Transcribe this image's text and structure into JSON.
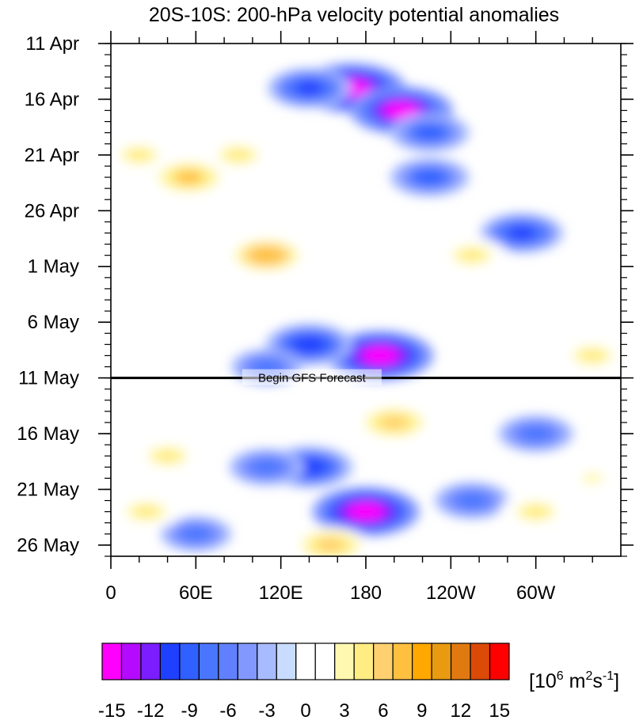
{
  "chart_data": {
    "type": "heatmap",
    "title": "20S-10S: 200-hPa velocity potential anomalies",
    "xlabel": "",
    "ylabel": "",
    "x_ticks": [
      {
        "lon": 0,
        "label": "0"
      },
      {
        "lon": 60,
        "label": "60E"
      },
      {
        "lon": 120,
        "label": "120E"
      },
      {
        "lon": 180,
        "label": "180"
      },
      {
        "lon": 240,
        "label": "120W"
      },
      {
        "lon": 300,
        "label": "60W"
      }
    ],
    "x_range": [
      0,
      360
    ],
    "y_ticks": [
      {
        "date": "2011-04-11",
        "label": "11 Apr"
      },
      {
        "date": "2011-04-16",
        "label": "16 Apr"
      },
      {
        "date": "2011-04-21",
        "label": "21 Apr"
      },
      {
        "date": "2011-04-26",
        "label": "26 Apr"
      },
      {
        "date": "2011-05-01",
        "label": "1 May"
      },
      {
        "date": "2011-05-06",
        "label": "6 May"
      },
      {
        "date": "2011-05-11",
        "label": "11 May"
      },
      {
        "date": "2011-05-16",
        "label": "16 May"
      },
      {
        "date": "2011-05-21",
        "label": "21 May"
      },
      {
        "date": "2011-05-26",
        "label": "26 May"
      }
    ],
    "y_range": [
      "2011-04-11",
      "2011-05-27"
    ],
    "y_direction": "time increases downward",
    "forecast_line": {
      "date": "2011-05-11",
      "label": "Begin GFS Forecast"
    },
    "colorbar": {
      "unit_base": "[10",
      "unit_exp1": "6",
      "unit_mid": " m",
      "unit_exp2": "2",
      "unit_s": "s",
      "unit_exp3": "-1",
      "unit_end": "]",
      "levels": [
        -15,
        -13.5,
        -12,
        -10.5,
        -9,
        -7.5,
        -6,
        -4.5,
        -3,
        -1.5,
        0,
        1.5,
        3,
        4.5,
        6,
        7.5,
        9,
        10.5,
        12,
        13.5,
        15
      ],
      "labels": [
        "-15",
        "-12",
        "-9",
        "-6",
        "-3",
        "0",
        "3",
        "6",
        "9",
        "12",
        "15"
      ],
      "colors": [
        "#ff00ff",
        "#b40aff",
        "#7a1eff",
        "#2040ff",
        "#3060ff",
        "#4a76ff",
        "#6080ff",
        "#8298ff",
        "#a8bbff",
        "#c8dcff",
        "#ffffff",
        "#ffffff",
        "#fff8b0",
        "#ffec82",
        "#ffd070",
        "#ffc040",
        "#ffa800",
        "#e89a10",
        "#e07a10",
        "#dc4a08",
        "#ff0000"
      ]
    },
    "anomaly_features": [
      {
        "lon": 170,
        "date": "2011-04-15",
        "value": -15
      },
      {
        "lon": 205,
        "date": "2011-04-17",
        "value": -14
      },
      {
        "lon": 140,
        "date": "2011-04-15",
        "value": -9
      },
      {
        "lon": 225,
        "date": "2011-04-19",
        "value": -8
      },
      {
        "lon": 225,
        "date": "2011-04-23",
        "value": -8
      },
      {
        "lon": 290,
        "date": "2011-04-28",
        "value": -9
      },
      {
        "lon": 190,
        "date": "2011-05-09",
        "value": -15
      },
      {
        "lon": 140,
        "date": "2011-05-08",
        "value": -10
      },
      {
        "lon": 110,
        "date": "2011-05-10",
        "value": -6
      },
      {
        "lon": 140,
        "date": "2011-05-19",
        "value": -10
      },
      {
        "lon": 180,
        "date": "2011-05-23",
        "value": -15
      },
      {
        "lon": 110,
        "date": "2011-05-19",
        "value": -7
      },
      {
        "lon": 300,
        "date": "2011-05-16",
        "value": -7
      },
      {
        "lon": 255,
        "date": "2011-05-22",
        "value": -7
      },
      {
        "lon": 60,
        "date": "2011-05-25",
        "value": -6
      },
      {
        "lon": 55,
        "date": "2011-04-23",
        "value": 8
      },
      {
        "lon": 90,
        "date": "2011-04-21",
        "value": 6
      },
      {
        "lon": 110,
        "date": "2011-04-30",
        "value": 9
      },
      {
        "lon": 20,
        "date": "2011-04-21",
        "value": 5
      },
      {
        "lon": 255,
        "date": "2011-04-30",
        "value": 6
      },
      {
        "lon": 340,
        "date": "2011-05-09",
        "value": 6
      },
      {
        "lon": 200,
        "date": "2011-05-15",
        "value": 7
      },
      {
        "lon": 40,
        "date": "2011-05-18",
        "value": 6
      },
      {
        "lon": 25,
        "date": "2011-05-23",
        "value": 6
      },
      {
        "lon": 155,
        "date": "2011-05-26",
        "value": 7
      },
      {
        "lon": 300,
        "date": "2011-05-23",
        "value": 6
      },
      {
        "lon": 340,
        "date": "2011-05-20",
        "value": 4
      }
    ]
  }
}
